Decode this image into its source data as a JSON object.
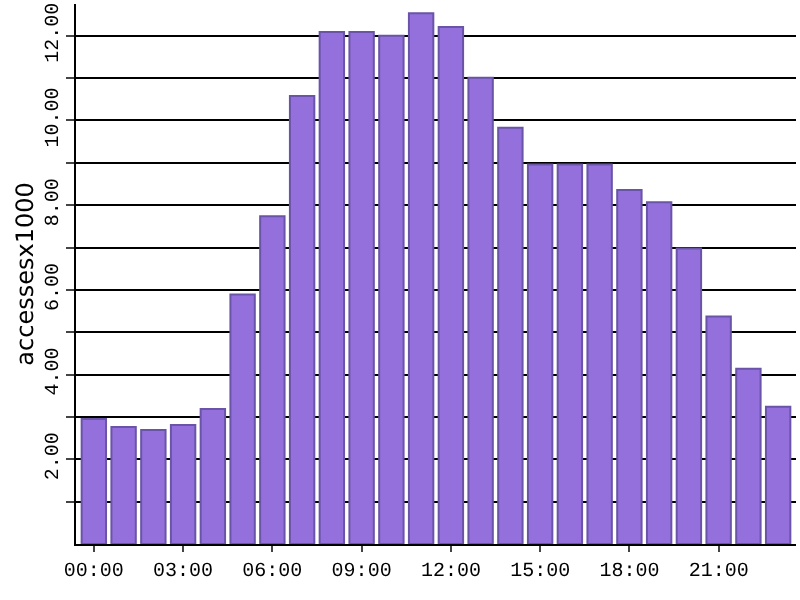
{
  "chart_data": {
    "type": "bar",
    "ylabel": "accessesx1000",
    "categories": [
      "00:00",
      null,
      null,
      "03:00",
      null,
      null,
      "06:00",
      null,
      null,
      "09:00",
      null,
      null,
      "12:00",
      null,
      null,
      "15:00",
      null,
      null,
      "18:00",
      null,
      null,
      "21:00",
      null,
      null
    ],
    "values": [
      2.95,
      2.76,
      2.69,
      2.81,
      3.19,
      5.89,
      7.74,
      10.58,
      12.09,
      12.09,
      12.0,
      12.53,
      12.21,
      11.01,
      9.83,
      8.96,
      8.96,
      8.96,
      8.36,
      8.07,
      6.98,
      5.37,
      4.14,
      3.24
    ],
    "color": "#9370db",
    "ylim": [
      0,
      12.75
    ],
    "yticks": [
      {
        "value": 1,
        "label": null
      },
      {
        "value": 2,
        "label": "2.00"
      },
      {
        "value": 3,
        "label": null
      },
      {
        "value": 4,
        "label": "4.00"
      },
      {
        "value": 5,
        "label": null
      },
      {
        "value": 6,
        "label": "6.00"
      },
      {
        "value": 7,
        "label": null
      },
      {
        "value": 8,
        "label": "8.00"
      },
      {
        "value": 9,
        "label": null
      },
      {
        "value": 10,
        "label": "10.00"
      },
      {
        "value": 11,
        "label": null
      },
      {
        "value": 12,
        "label": "12.00"
      }
    ],
    "grid": "y"
  }
}
